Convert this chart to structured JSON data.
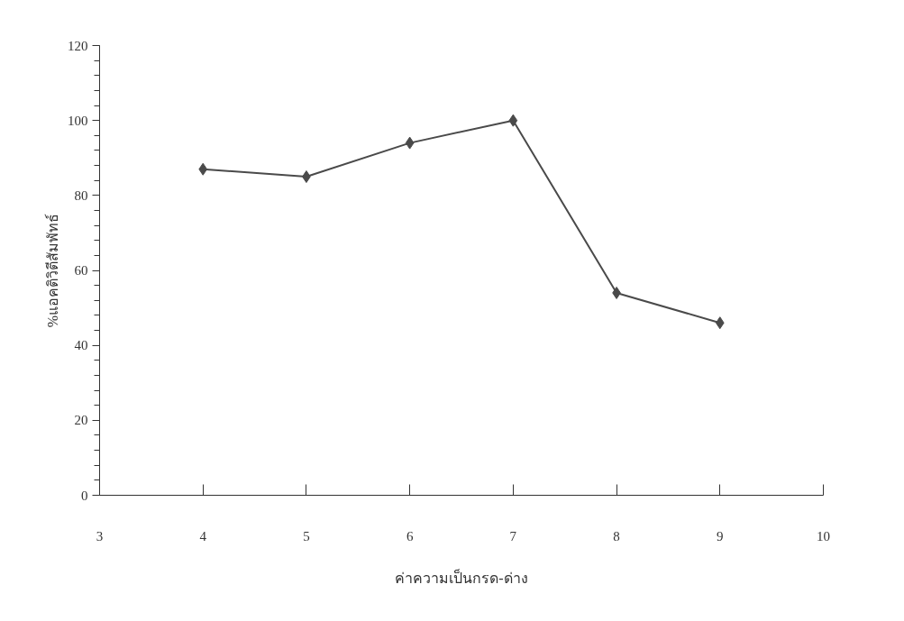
{
  "chart_data": {
    "type": "line",
    "xlabel": "ค่าความเป็นกรด-ด่าง",
    "ylabel": "%แอคติวิตีสัมพัทธ์",
    "x": [
      4,
      5,
      6,
      7,
      8,
      9
    ],
    "series": [
      {
        "color": "#4a4a4a",
        "values": [
          87,
          85,
          94,
          100,
          54,
          46
        ]
      }
    ],
    "xlim": [
      3,
      10
    ],
    "xticks": [
      3,
      4,
      5,
      6,
      7,
      8,
      9,
      10
    ],
    "ylim": [
      0,
      120
    ],
    "yticks": [
      0,
      20,
      40,
      60,
      80,
      100,
      120
    ],
    "grid": false,
    "marker": "diamond",
    "line_style": "solid"
  }
}
